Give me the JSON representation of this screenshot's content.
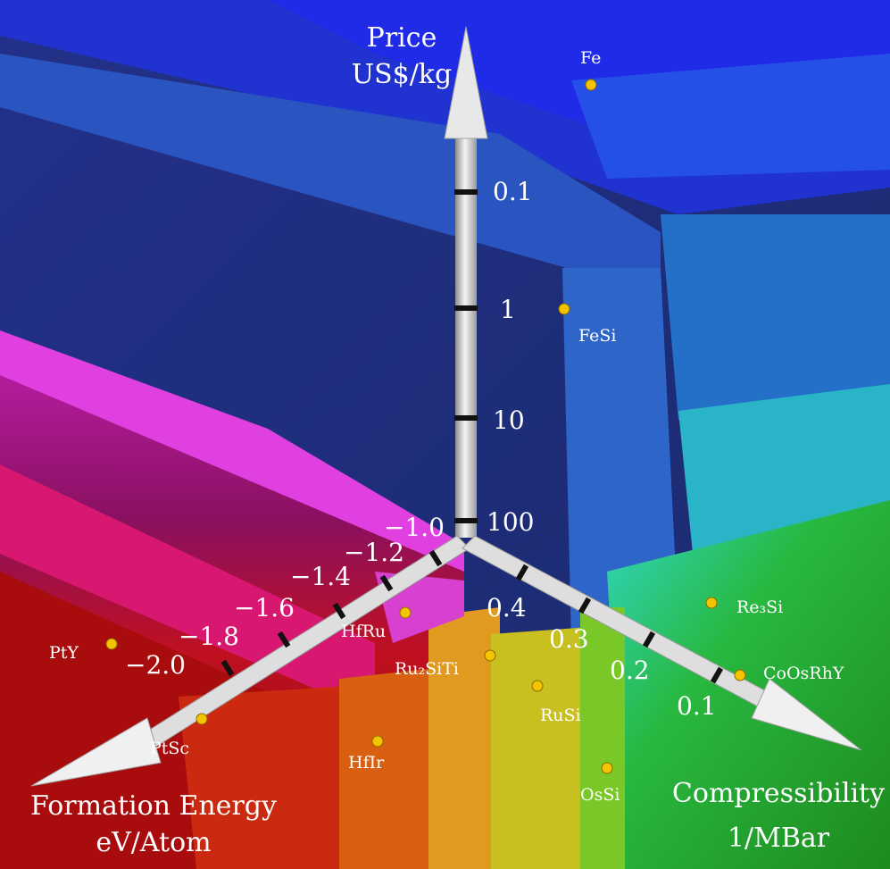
{
  "chart_data": {
    "type": "scatter",
    "axes": {
      "price": {
        "title_line1": "Price",
        "title_line2": "US$/kg",
        "scale": "log",
        "ticks": [
          "0.1",
          "1",
          "10",
          "100"
        ]
      },
      "formation": {
        "title_line1": "Formation Energy",
        "title_line2": "eV/Atom",
        "ticks": [
          "−1.0",
          "−1.2",
          "−1.4",
          "−1.6",
          "−1.8",
          "−2.0"
        ]
      },
      "compress": {
        "title_line1": "Compressibility",
        "title_line2": "1/MBar",
        "ticks": [
          "0.4",
          "0.3",
          "0.2",
          "0.1"
        ]
      }
    },
    "materials": [
      {
        "name": "Fe"
      },
      {
        "name": "FeSi"
      },
      {
        "name": "Re₃Si"
      },
      {
        "name": "CoOsRhY"
      },
      {
        "name": "RuSi"
      },
      {
        "name": "OsSi"
      },
      {
        "name": "Ru₂SiTi"
      },
      {
        "name": "HfRu"
      },
      {
        "name": "HfIr"
      },
      {
        "name": "PtSc"
      },
      {
        "name": "PtY"
      }
    ],
    "colors": {
      "background_back": "#1c2f78",
      "top_blue": "#2030e0",
      "cyan": "#2ad0e0",
      "green": "#2aa828",
      "yellow": "#d8c020",
      "orange": "#e06a10",
      "red": "#b01010",
      "magenta": "#d030d0",
      "marker": "#f5c400"
    }
  }
}
